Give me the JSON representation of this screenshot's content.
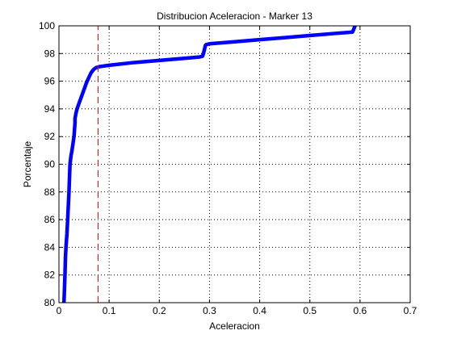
{
  "chart_data": {
    "type": "line",
    "title": "Distribucion Aceleracion - Marker 13",
    "xlabel": "Aceleracion",
    "ylabel": "Porcentaje",
    "xlim": [
      0,
      0.7
    ],
    "ylim": [
      80,
      100
    ],
    "xticks": [
      0,
      0.1,
      0.2,
      0.3,
      0.4,
      0.5,
      0.6,
      0.7
    ],
    "xtick_labels": [
      "0",
      "0.1",
      "0.2",
      "0.3",
      "0.4",
      "0.5",
      "0.6",
      "0.7"
    ],
    "yticks": [
      80,
      82,
      84,
      86,
      88,
      90,
      92,
      94,
      96,
      98,
      100
    ],
    "ytick_labels": [
      "80",
      "82",
      "84",
      "86",
      "88",
      "90",
      "92",
      "94",
      "96",
      "98",
      "100"
    ],
    "grid": true,
    "series": [
      {
        "color": "#0000ff",
        "style": "solid-thick",
        "x": [
          0.01,
          0.011,
          0.012,
          0.013,
          0.014,
          0.016,
          0.018,
          0.02,
          0.022,
          0.024,
          0.026,
          0.028,
          0.03,
          0.031,
          0.032,
          0.032,
          0.033,
          0.034,
          0.036,
          0.04,
          0.045,
          0.05,
          0.055,
          0.06,
          0.064,
          0.068,
          0.071,
          0.073,
          0.075,
          0.076,
          0.08,
          0.1,
          0.15,
          0.2,
          0.25,
          0.28,
          0.286,
          0.288,
          0.29,
          0.292,
          0.294,
          0.3,
          0.35,
          0.4,
          0.45,
          0.5,
          0.55,
          0.585,
          0.588,
          0.59
        ],
        "y": [
          80,
          81,
          82,
          83.3,
          84,
          85,
          86.5,
          88,
          90,
          90.6,
          91,
          91.5,
          92,
          92.5,
          93,
          93.3,
          93.5,
          93.7,
          94,
          94.4,
          94.9,
          95.4,
          95.9,
          96.3,
          96.6,
          96.8,
          96.9,
          96.95,
          97.0,
          97.0,
          97.05,
          97.15,
          97.35,
          97.5,
          97.65,
          97.75,
          97.8,
          98.0,
          98.3,
          98.6,
          98.65,
          98.7,
          98.85,
          99.0,
          99.15,
          99.3,
          99.45,
          99.55,
          99.8,
          100
        ]
      },
      {
        "color": "#ff0000",
        "style": "dashed",
        "x": [
          0.078,
          0.078
        ],
        "y": [
          80,
          100
        ]
      }
    ]
  }
}
